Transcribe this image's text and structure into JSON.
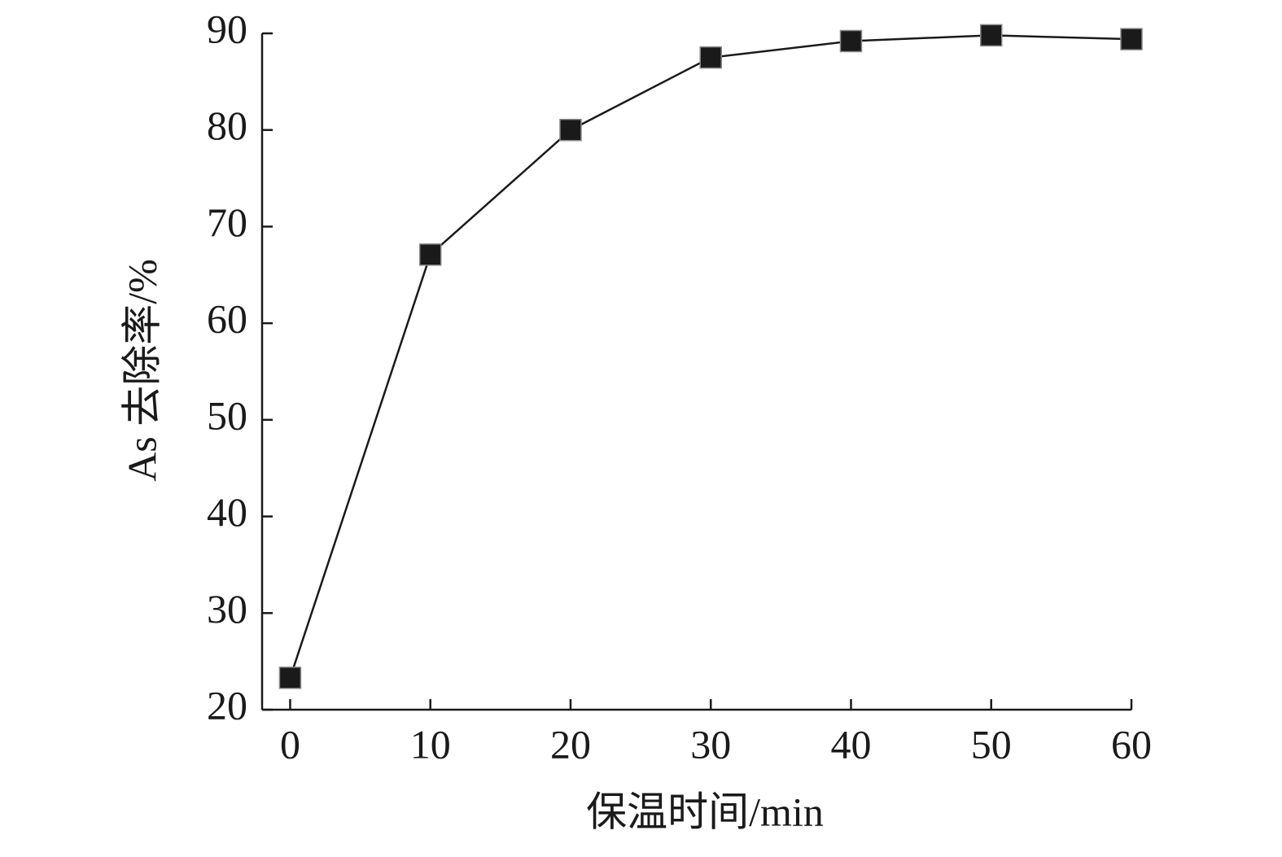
{
  "chart_data": {
    "type": "line",
    "x_label": "保温时间/min",
    "y_label": "As 去除率/%",
    "x": [
      0,
      10,
      20,
      30,
      40,
      50,
      60
    ],
    "series": [
      {
        "color": "#1a1a1a",
        "values": [
          23.3,
          67.1,
          80,
          87.5,
          89.2,
          89.8,
          89.4
        ]
      }
    ],
    "xlim": [
      -2,
      60
    ],
    "xticks": [
      0,
      10,
      20,
      30,
      40,
      50,
      60
    ],
    "ylim": [
      20,
      90
    ],
    "yticks": [
      20,
      30,
      40,
      50,
      60,
      70,
      80,
      90
    ],
    "grid": false
  }
}
